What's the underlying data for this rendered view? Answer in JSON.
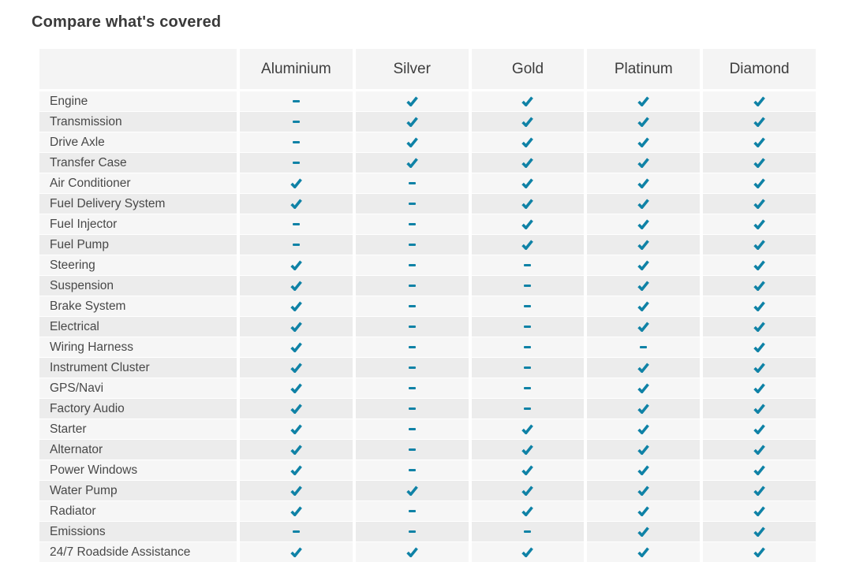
{
  "page": {
    "title": "Compare what's covered"
  },
  "colors": {
    "accent_teal": "#0f82a6",
    "header_bg": "#f4f4f4",
    "row_light": "#f6f6f6",
    "row_dark": "#ececec",
    "title_text": "#3a3a3a",
    "label_text": "#484848"
  },
  "icons": {
    "covered": "check-icon",
    "not_covered": "dash-icon"
  },
  "table": {
    "plans": [
      "Aluminium",
      "Silver",
      "Gold",
      "Platinum",
      "Diamond"
    ],
    "rows": [
      {
        "label": "Engine",
        "covered": [
          false,
          true,
          true,
          true,
          true
        ]
      },
      {
        "label": "Transmission",
        "covered": [
          false,
          true,
          true,
          true,
          true
        ]
      },
      {
        "label": "Drive Axle",
        "covered": [
          false,
          true,
          true,
          true,
          true
        ]
      },
      {
        "label": "Transfer Case",
        "covered": [
          false,
          true,
          true,
          true,
          true
        ]
      },
      {
        "label": "Air Conditioner",
        "covered": [
          true,
          false,
          true,
          true,
          true
        ]
      },
      {
        "label": "Fuel Delivery System",
        "covered": [
          true,
          false,
          true,
          true,
          true
        ]
      },
      {
        "label": "Fuel Injector",
        "covered": [
          false,
          false,
          true,
          true,
          true
        ]
      },
      {
        "label": "Fuel Pump",
        "covered": [
          false,
          false,
          true,
          true,
          true
        ]
      },
      {
        "label": "Steering",
        "covered": [
          true,
          false,
          false,
          true,
          true
        ]
      },
      {
        "label": "Suspension",
        "covered": [
          true,
          false,
          false,
          true,
          true
        ]
      },
      {
        "label": "Brake System",
        "covered": [
          true,
          false,
          false,
          true,
          true
        ]
      },
      {
        "label": "Electrical",
        "covered": [
          true,
          false,
          false,
          true,
          true
        ]
      },
      {
        "label": "Wiring Harness",
        "covered": [
          true,
          false,
          false,
          false,
          true
        ]
      },
      {
        "label": "Instrument Cluster",
        "covered": [
          true,
          false,
          false,
          true,
          true
        ]
      },
      {
        "label": "GPS/Navi",
        "covered": [
          true,
          false,
          false,
          true,
          true
        ]
      },
      {
        "label": "Factory Audio",
        "covered": [
          true,
          false,
          false,
          true,
          true
        ]
      },
      {
        "label": "Starter",
        "covered": [
          true,
          false,
          true,
          true,
          true
        ]
      },
      {
        "label": "Alternator",
        "covered": [
          true,
          false,
          true,
          true,
          true
        ]
      },
      {
        "label": "Power Windows",
        "covered": [
          true,
          false,
          true,
          true,
          true
        ]
      },
      {
        "label": "Water Pump",
        "covered": [
          true,
          true,
          true,
          true,
          true
        ]
      },
      {
        "label": "Radiator",
        "covered": [
          true,
          false,
          true,
          true,
          true
        ]
      },
      {
        "label": "Emissions",
        "covered": [
          false,
          false,
          false,
          true,
          true
        ]
      },
      {
        "label": "24/7 Roadside Assistance",
        "covered": [
          true,
          true,
          true,
          true,
          true
        ]
      }
    ]
  }
}
